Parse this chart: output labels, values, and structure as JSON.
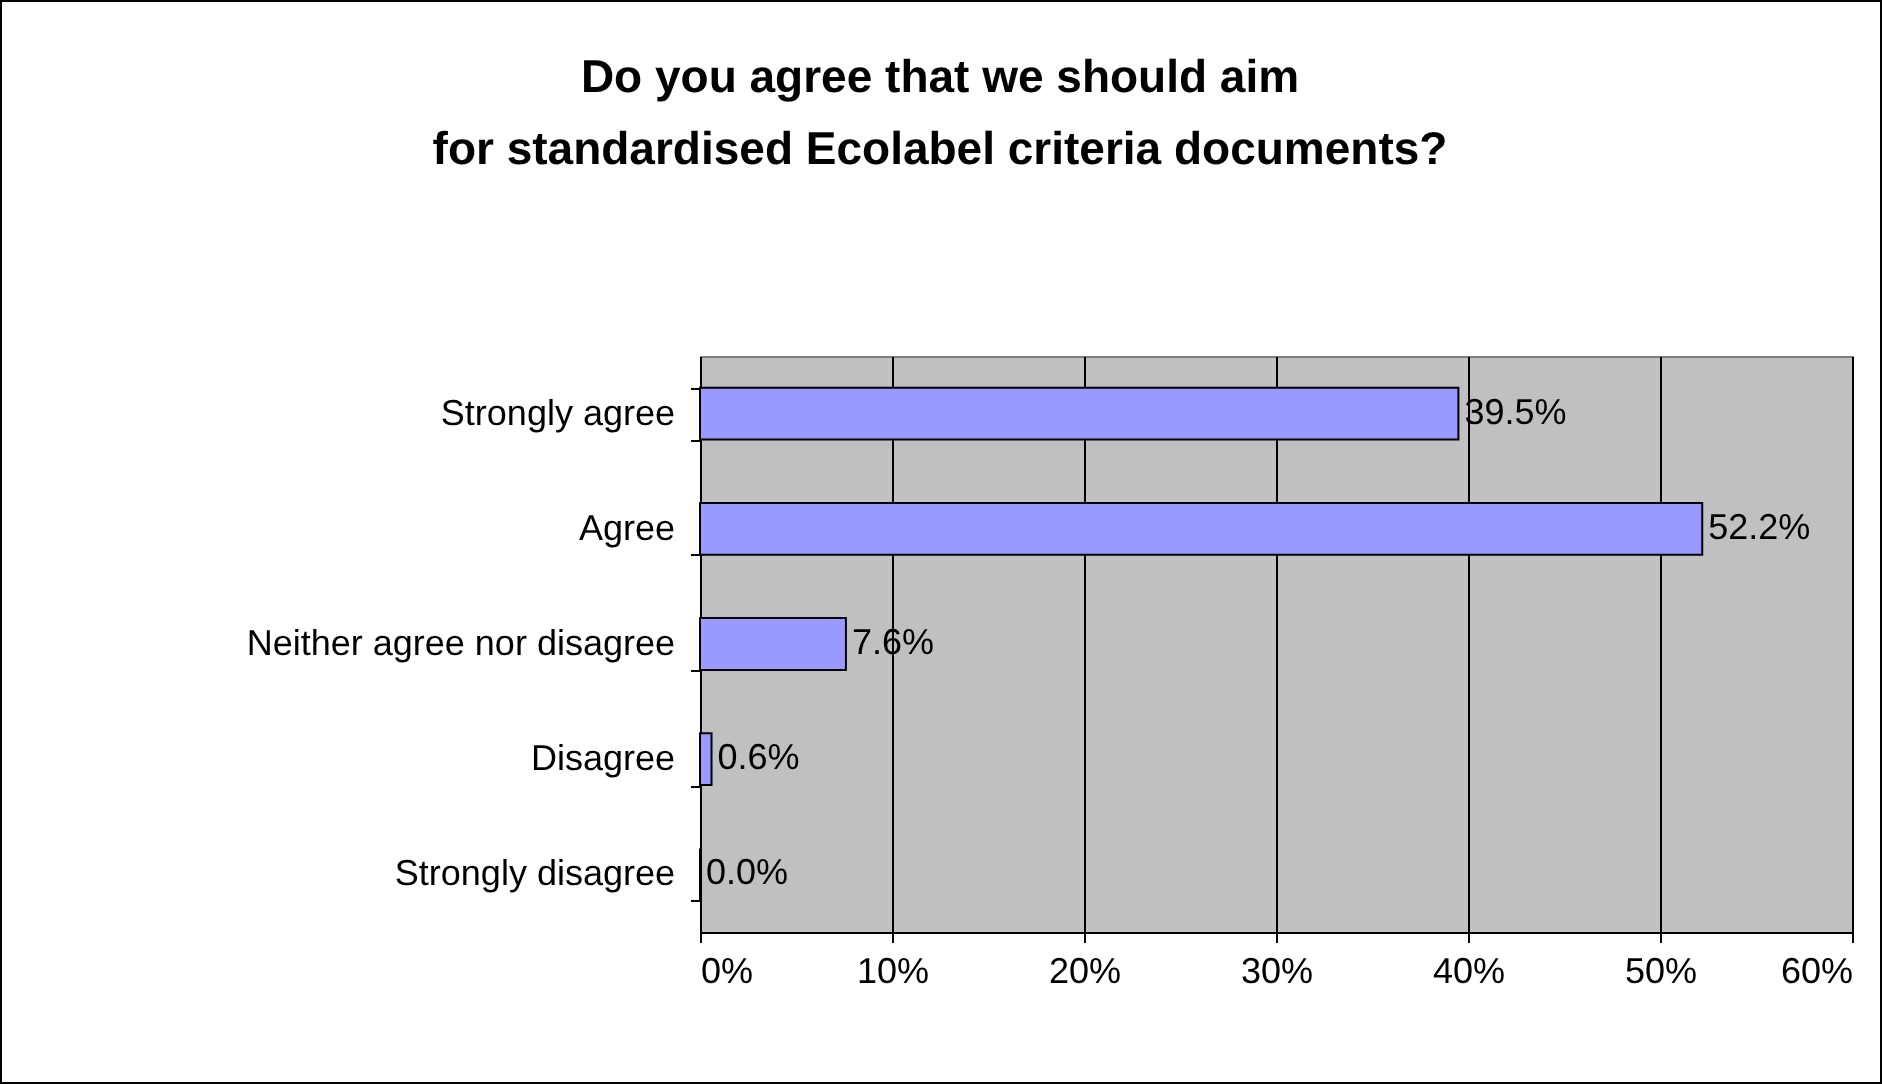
{
  "chart_data": {
    "type": "bar",
    "orientation": "horizontal",
    "title": "Do you agree that we should aim\nfor standardised Ecolabel criteria documents?",
    "categories": [
      "Strongly agree",
      "Agree",
      "Neither agree nor disagree",
      "Disagree",
      "Strongly disagree"
    ],
    "values": [
      39.5,
      52.2,
      7.6,
      0.6,
      0.0
    ],
    "value_labels": [
      "39.5%",
      "52.2%",
      "7.6%",
      "0.6%",
      "0.0%"
    ],
    "color": "#9999ff",
    "xlim": [
      0,
      60
    ],
    "xticks": [
      {
        "value": 0,
        "label": "0%"
      },
      {
        "value": 10,
        "label": "10%"
      },
      {
        "value": 20,
        "label": "20%"
      },
      {
        "value": 30,
        "label": "30%"
      },
      {
        "value": 40,
        "label": "40%"
      },
      {
        "value": 50,
        "label": "50%"
      },
      {
        "value": 60,
        "label": "60%"
      }
    ],
    "grid": "x"
  }
}
